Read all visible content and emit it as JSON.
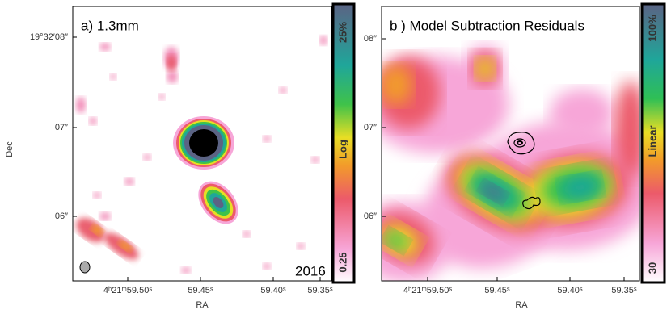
{
  "panels": [
    {
      "label": "a)  1.3mm",
      "ylabel": "Dec",
      "xlabel": "RA",
      "xticks": [
        "4ʰ21ᵐ59.50ˢ",
        "59.45ˢ",
        "59.40ˢ",
        "59.35ˢ"
      ],
      "yticks": [
        "19°32′08″",
        "07″",
        "06″"
      ],
      "colorbar": {
        "top": "25%",
        "middle": "Log",
        "bottom": "0.25"
      },
      "annotation": "2016"
    },
    {
      "label": "b ) Model Subtraction Residuals",
      "xlabel": "RA",
      "xticks": [
        "4ʰ21ᵐ59.50ˢ",
        "59.45ˢ",
        "59.40ˢ",
        "59.35ˢ"
      ],
      "yticks": [
        "08″",
        "07″",
        "06″"
      ],
      "colorbar": {
        "top": "100%",
        "middle": "Linear",
        "bottom": "30"
      }
    }
  ]
}
